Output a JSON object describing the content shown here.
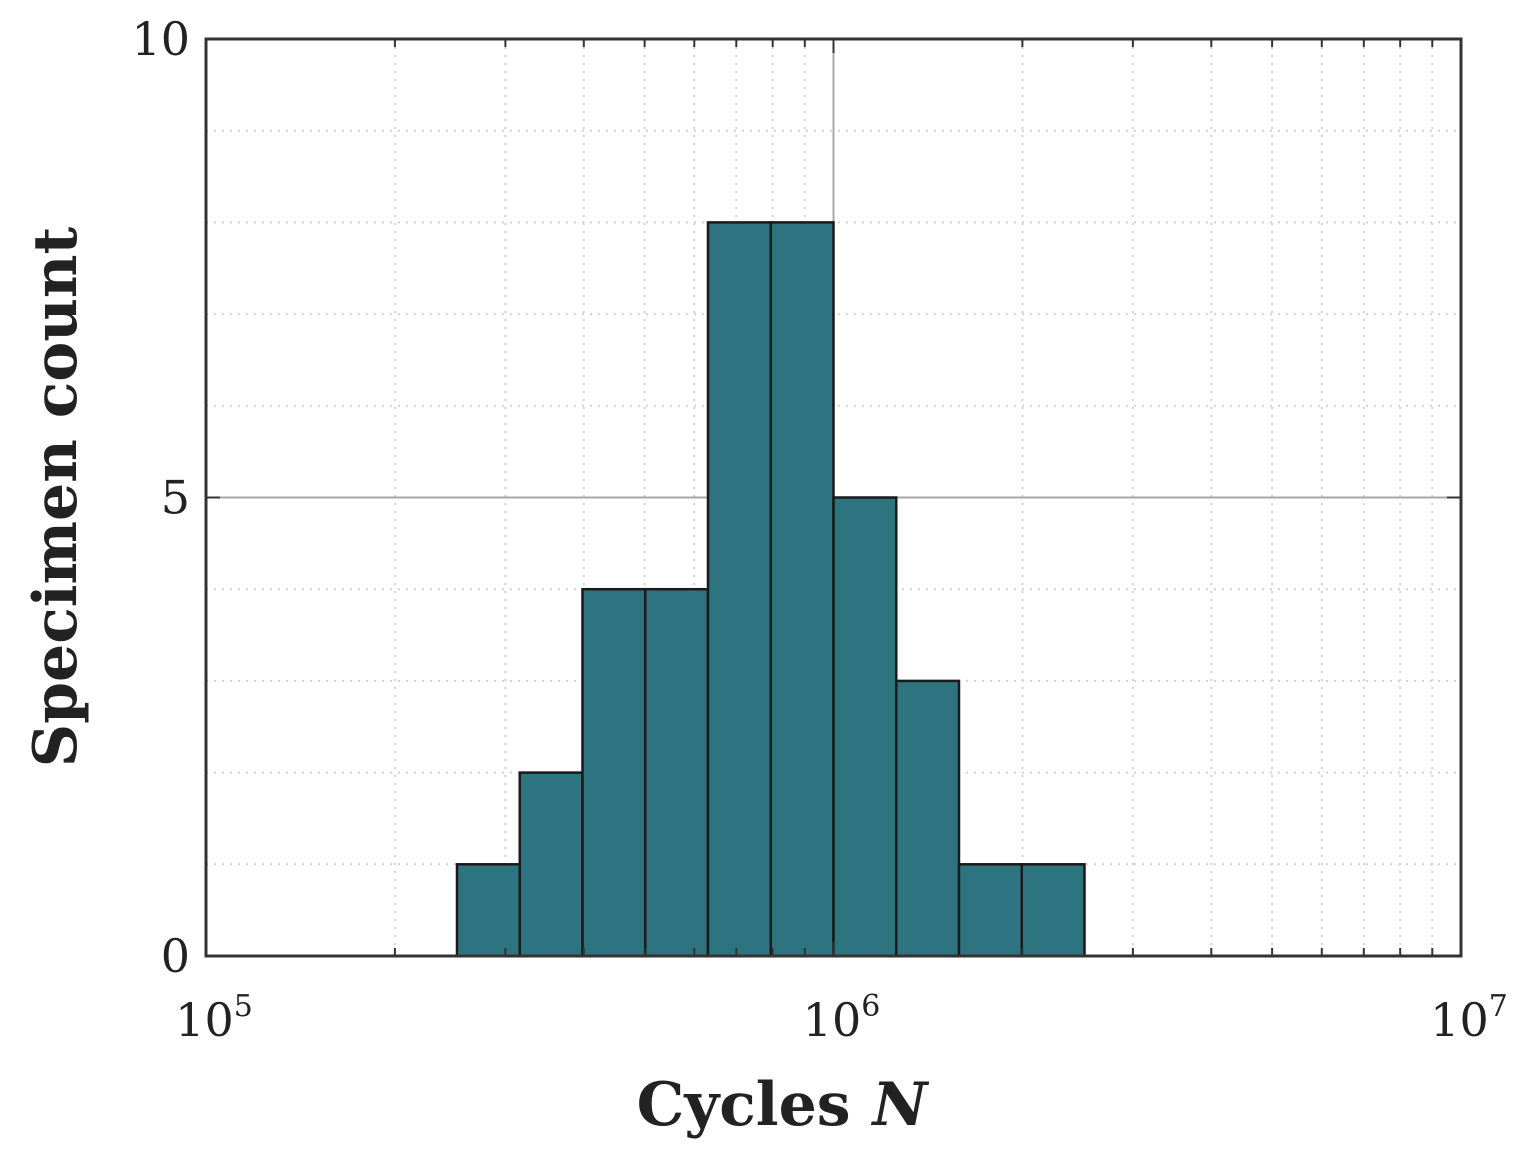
{
  "chart_data": {
    "type": "histogram",
    "title": "",
    "xlabel": "Cycles",
    "xlabel_var": "N",
    "ylabel": "Specimen count",
    "x_scale": "log",
    "xlim": [
      100000,
      10000000
    ],
    "ylim": [
      0,
      10
    ],
    "grid": true,
    "x_ticks": [
      {
        "base": "10",
        "exp": "5",
        "value": 100000
      },
      {
        "base": "10",
        "exp": "6",
        "value": 1000000
      },
      {
        "base": "10",
        "exp": "7",
        "value": 10000000
      }
    ],
    "y_ticks": [
      {
        "label": "0",
        "value": 0
      },
      {
        "label": "5",
        "value": 5
      },
      {
        "label": "10",
        "value": 10
      }
    ],
    "bin_edges": [
      251189,
      316228,
      398107,
      501187,
      630957,
      794328,
      1000000,
      1258925,
      1584893,
      1995262,
      2511886
    ],
    "counts": [
      1,
      2,
      4,
      4,
      8,
      8,
      5,
      3,
      1,
      1
    ],
    "bar_color": "#2e7480",
    "edge_color": "#1a1a1a"
  }
}
